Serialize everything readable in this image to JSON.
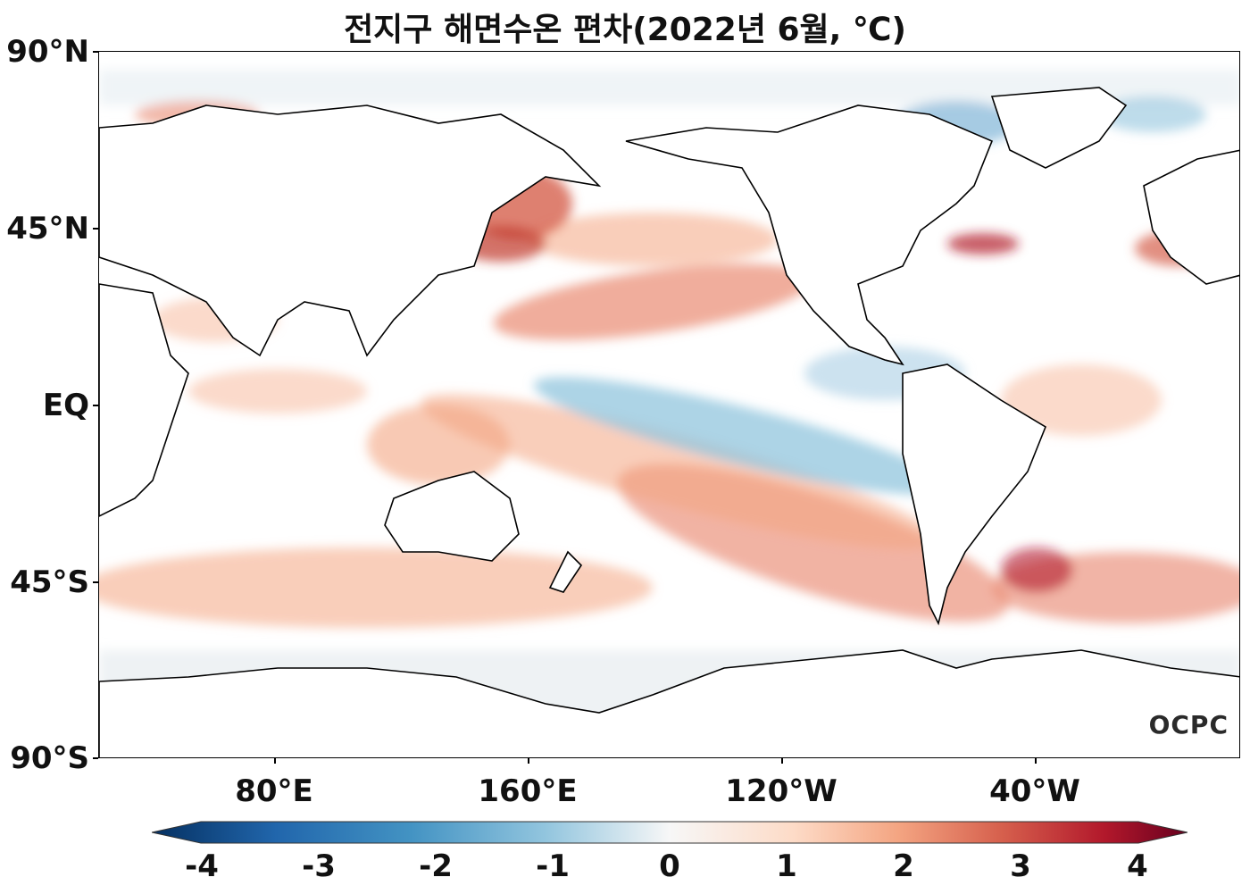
{
  "title": "전지구 해면수온 편차(2022년 6월, ℃)",
  "y_axis": {
    "ticks": [
      "90°N",
      "45°N",
      "EQ",
      "45°S",
      "90°S"
    ]
  },
  "x_axis": {
    "ticks": [
      "80°E",
      "160°E",
      "120°W",
      "40°W"
    ]
  },
  "colorbar": {
    "ticks": [
      "-4",
      "-3",
      "-2",
      "-1",
      "0",
      "1",
      "2",
      "3",
      "4"
    ],
    "range": [
      -4,
      4
    ],
    "colors": [
      "#053061",
      "#2166ac",
      "#4393c3",
      "#92c5de",
      "#f7f7f7",
      "#fddbc7",
      "#f4a582",
      "#d6604d",
      "#b2182b",
      "#67001f"
    ]
  },
  "logo": "OCPC"
}
